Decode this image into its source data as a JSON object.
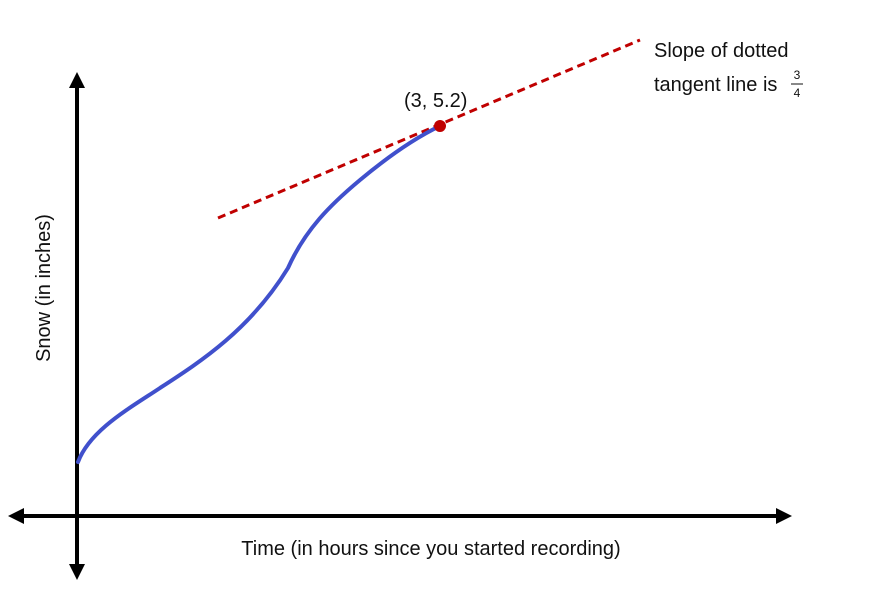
{
  "chart_data": {
    "type": "line",
    "xlabel": "Time (in hours since you started recording)",
    "ylabel": "Snow (in inches)",
    "point": {
      "label": "(3, 5.2)",
      "x": 3,
      "y": 5.2
    },
    "annotation": {
      "line1": "Slope of dotted",
      "line2_prefix": "tangent line is",
      "slope_numerator": "3",
      "slope_denominator": "4"
    }
  },
  "colors": {
    "axis": "#000000",
    "curve": "#4050cc",
    "tangent": "#c00000",
    "point": "#c00000",
    "text": "#111111"
  }
}
